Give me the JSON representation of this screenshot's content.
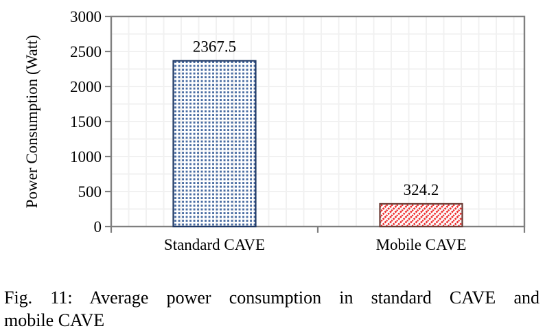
{
  "chart_data": {
    "type": "bar",
    "title": "",
    "categories": [
      "Standard CAVE",
      "Mobile CAVE"
    ],
    "values": [
      2367.5,
      324.2
    ],
    "value_labels": [
      "2367.5",
      "324.2"
    ],
    "xlabel": "",
    "ylabel": "Power Consumption (Watt)",
    "ylim": [
      0,
      3000
    ],
    "ytick_step": 500,
    "ytick_labels": [
      "0",
      "500",
      "1000",
      "1500",
      "2000",
      "2500",
      "3000"
    ],
    "grid": {
      "show": true,
      "minor_step": 250,
      "style": "light-gray-square-grid"
    },
    "legend": "none",
    "bar_styles": [
      {
        "pattern": "small-square-dots",
        "color": "#4a6da3",
        "border": "#1f3864"
      },
      {
        "pattern": "diagonal-dotted-hatch",
        "color": "#ee2e2e",
        "border": "#6b3a33"
      }
    ]
  },
  "caption": {
    "line1": "Fig. 11: Average power consumption in standard CAVE and",
    "line2": "mobile CAVE"
  },
  "colors": {
    "axis": "#7f7f7f",
    "gridline": "#f1f1f1",
    "text": "#000000",
    "background": "#ffffff"
  }
}
